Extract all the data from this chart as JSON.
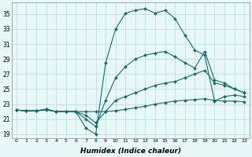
{
  "xlabel": "Humidex (Indice chaleur)",
  "background_color": "#e8f8f8",
  "grid_color": "#c0dede",
  "line_color": "#1a6b6b",
  "xlim": [
    -0.5,
    23.5
  ],
  "ylim": [
    18.5,
    36.5
  ],
  "yticks": [
    19,
    21,
    23,
    25,
    27,
    29,
    31,
    33,
    35
  ],
  "xticks": [
    0,
    1,
    2,
    3,
    4,
    5,
    6,
    7,
    8,
    9,
    10,
    11,
    12,
    13,
    14,
    15,
    16,
    17,
    18,
    19,
    20,
    21,
    22,
    23
  ],
  "series": [
    {
      "x": [
        0,
        1,
        2,
        3,
        4,
        5,
        6,
        7,
        8,
        9,
        10,
        11,
        12,
        13,
        14,
        15,
        16,
        17,
        18,
        19,
        20,
        21,
        22,
        23
      ],
      "y": [
        22.2,
        22.1,
        22.1,
        22.3,
        22.0,
        22.0,
        22.0,
        19.8,
        19.0,
        28.5,
        33.0,
        35.1,
        35.5,
        35.7,
        35.1,
        35.5,
        34.4,
        32.2,
        30.2,
        29.5,
        23.4,
        24.0,
        24.2,
        24.0
      ]
    },
    {
      "x": [
        0,
        1,
        2,
        3,
        4,
        5,
        6,
        7,
        8,
        9,
        10,
        11,
        12,
        13,
        14,
        15,
        16,
        17,
        18,
        19,
        20,
        21,
        22,
        23
      ],
      "y": [
        22.2,
        22.1,
        22.1,
        22.3,
        22.0,
        22.0,
        22.0,
        21.0,
        20.0,
        23.5,
        26.5,
        28.0,
        29.0,
        29.5,
        29.8,
        30.0,
        29.3,
        28.5,
        27.8,
        30.0,
        26.2,
        25.8,
        25.0,
        24.5
      ]
    },
    {
      "x": [
        0,
        1,
        2,
        3,
        4,
        5,
        6,
        7,
        8,
        9,
        10,
        11,
        12,
        13,
        14,
        15,
        16,
        17,
        18,
        19,
        20,
        21,
        22,
        23
      ],
      "y": [
        22.2,
        22.1,
        22.1,
        22.3,
        22.0,
        22.0,
        22.0,
        21.5,
        20.5,
        22.0,
        23.5,
        24.0,
        24.5,
        25.0,
        25.5,
        25.8,
        26.0,
        26.5,
        27.0,
        27.5,
        25.8,
        25.5,
        25.0,
        24.5
      ]
    },
    {
      "x": [
        0,
        1,
        2,
        3,
        4,
        5,
        6,
        7,
        8,
        9,
        10,
        11,
        12,
        13,
        14,
        15,
        16,
        17,
        18,
        19,
        20,
        21,
        22,
        23
      ],
      "y": [
        22.2,
        22.1,
        22.1,
        22.2,
        22.0,
        22.0,
        22.0,
        22.0,
        22.0,
        22.0,
        22.1,
        22.3,
        22.5,
        22.7,
        23.0,
        23.2,
        23.4,
        23.5,
        23.6,
        23.7,
        23.5,
        23.4,
        23.4,
        23.3
      ]
    }
  ]
}
